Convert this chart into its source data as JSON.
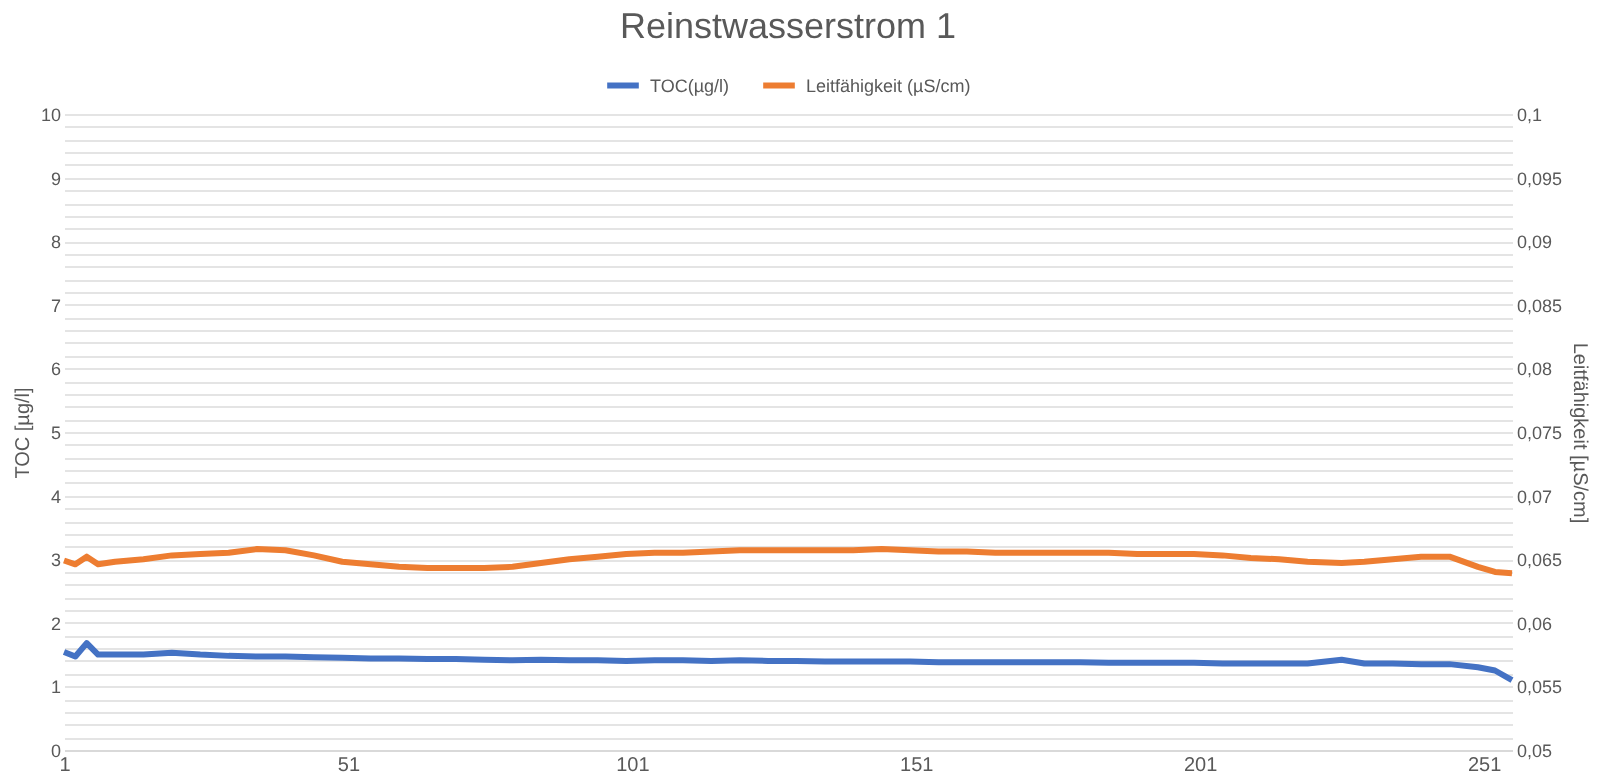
{
  "chart_data": {
    "type": "line",
    "title": "Reinstwasserstrom 1",
    "ylabel": "TOC [µg/l]",
    "y2label": "Leitfähigkeit [µS/cm]",
    "x": [
      1,
      3,
      5,
      7,
      10,
      15,
      20,
      25,
      30,
      35,
      40,
      45,
      50,
      55,
      60,
      65,
      70,
      75,
      80,
      85,
      90,
      95,
      100,
      105,
      110,
      115,
      120,
      125,
      130,
      135,
      140,
      145,
      150,
      155,
      160,
      165,
      170,
      175,
      180,
      185,
      190,
      195,
      200,
      205,
      210,
      215,
      220,
      226,
      230,
      235,
      240,
      245,
      250,
      253,
      256
    ],
    "series": [
      {
        "name": "TOC(µg/l)",
        "color": "#4472c4",
        "values": [
          1.54,
          1.47,
          1.68,
          1.5,
          1.5,
          1.5,
          1.53,
          1.5,
          1.48,
          1.47,
          1.47,
          1.46,
          1.45,
          1.44,
          1.44,
          1.43,
          1.43,
          1.42,
          1.41,
          1.42,
          1.41,
          1.41,
          1.4,
          1.41,
          1.41,
          1.4,
          1.41,
          1.4,
          1.4,
          1.39,
          1.39,
          1.39,
          1.39,
          1.38,
          1.38,
          1.38,
          1.38,
          1.38,
          1.38,
          1.37,
          1.37,
          1.37,
          1.37,
          1.36,
          1.36,
          1.36,
          1.36,
          1.42,
          1.36,
          1.36,
          1.35,
          1.35,
          1.3,
          1.25,
          1.1
        ]
      },
      {
        "name": "Leitfähigkeit (µS/cm)",
        "color": "#ed7d31",
        "axis": "y2",
        "values": [
          0.0649,
          0.0646,
          0.0652,
          0.0646,
          0.0648,
          0.065,
          0.0653,
          0.0654,
          0.0655,
          0.0658,
          0.0657,
          0.0653,
          0.0648,
          0.0646,
          0.0644,
          0.0643,
          0.0643,
          0.0643,
          0.0644,
          0.0647,
          0.065,
          0.0652,
          0.0654,
          0.0655,
          0.0655,
          0.0656,
          0.0657,
          0.0657,
          0.0657,
          0.0657,
          0.0657,
          0.0658,
          0.0657,
          0.0656,
          0.0656,
          0.0655,
          0.0655,
          0.0655,
          0.0655,
          0.0655,
          0.0654,
          0.0654,
          0.0654,
          0.0653,
          0.0651,
          0.065,
          0.0648,
          0.0647,
          0.0648,
          0.065,
          0.0652,
          0.0652,
          0.0644,
          0.064,
          0.0639
        ]
      }
    ],
    "xlim": [
      1,
      256
    ],
    "xticks": [
      1,
      51,
      101,
      151,
      201,
      251
    ],
    "ylim": [
      0,
      10
    ],
    "yticks": [
      {
        "value": 0,
        "label": "0"
      },
      {
        "value": 0.2,
        "label": null
      },
      {
        "value": 0.4,
        "label": null
      },
      {
        "value": 0.6,
        "label": null
      },
      {
        "value": 0.8,
        "label": null
      },
      {
        "value": 1,
        "label": "1"
      },
      {
        "value": 1.2,
        "label": null
      },
      {
        "value": 1.4,
        "label": null
      },
      {
        "value": 1.6,
        "label": null
      },
      {
        "value": 1.8,
        "label": null
      },
      {
        "value": 2,
        "label": "2"
      },
      {
        "value": 2.2,
        "label": null
      },
      {
        "value": 2.4,
        "label": null
      },
      {
        "value": 2.6,
        "label": null
      },
      {
        "value": 2.8,
        "label": null
      },
      {
        "value": 3,
        "label": "3"
      },
      {
        "value": 3.2,
        "label": null
      },
      {
        "value": 3.4,
        "label": null
      },
      {
        "value": 3.6,
        "label": null
      },
      {
        "value": 3.8,
        "label": null
      },
      {
        "value": 4,
        "label": "4"
      },
      {
        "value": 4.2,
        "label": null
      },
      {
        "value": 4.4,
        "label": null
      },
      {
        "value": 4.6,
        "label": null
      },
      {
        "value": 4.8,
        "label": null
      },
      {
        "value": 5,
        "label": "5"
      },
      {
        "value": 5.2,
        "label": null
      },
      {
        "value": 5.4,
        "label": null
      },
      {
        "value": 5.6,
        "label": null
      },
      {
        "value": 5.8,
        "label": null
      },
      {
        "value": 6,
        "label": "6"
      },
      {
        "value": 6.2,
        "label": null
      },
      {
        "value": 6.4,
        "label": null
      },
      {
        "value": 6.6,
        "label": null
      },
      {
        "value": 6.8,
        "label": null
      },
      {
        "value": 7,
        "label": "7"
      },
      {
        "value": 7.2,
        "label": null
      },
      {
        "value": 7.4,
        "label": null
      },
      {
        "value": 7.6,
        "label": null
      },
      {
        "value": 7.8,
        "label": null
      },
      {
        "value": 8,
        "label": "8"
      },
      {
        "value": 8.2,
        "label": null
      },
      {
        "value": 8.4,
        "label": null
      },
      {
        "value": 8.6,
        "label": null
      },
      {
        "value": 8.8,
        "label": null
      },
      {
        "value": 9,
        "label": "9"
      },
      {
        "value": 9.2,
        "label": null
      },
      {
        "value": 9.4,
        "label": null
      },
      {
        "value": 9.6,
        "label": null
      },
      {
        "value": 9.8,
        "label": null
      },
      {
        "value": 10,
        "label": "10"
      }
    ],
    "y2lim": [
      0.05,
      0.1
    ],
    "y2ticks": [
      {
        "value": 0.05,
        "label": "0,05"
      },
      {
        "value": 0.055,
        "label": "0,055"
      },
      {
        "value": 0.06,
        "label": "0,06"
      },
      {
        "value": 0.065,
        "label": "0,065"
      },
      {
        "value": 0.07,
        "label": "0,07"
      },
      {
        "value": 0.075,
        "label": "0,075"
      },
      {
        "value": 0.08,
        "label": "0,08"
      },
      {
        "value": 0.085,
        "label": "0,085"
      },
      {
        "value": 0.09,
        "label": "0,09"
      },
      {
        "value": 0.095,
        "label": "0,095"
      },
      {
        "value": 0.1,
        "label": "0,1"
      }
    ],
    "grid": "y",
    "legend": "top",
    "marker": "none",
    "line_style": "solid"
  }
}
